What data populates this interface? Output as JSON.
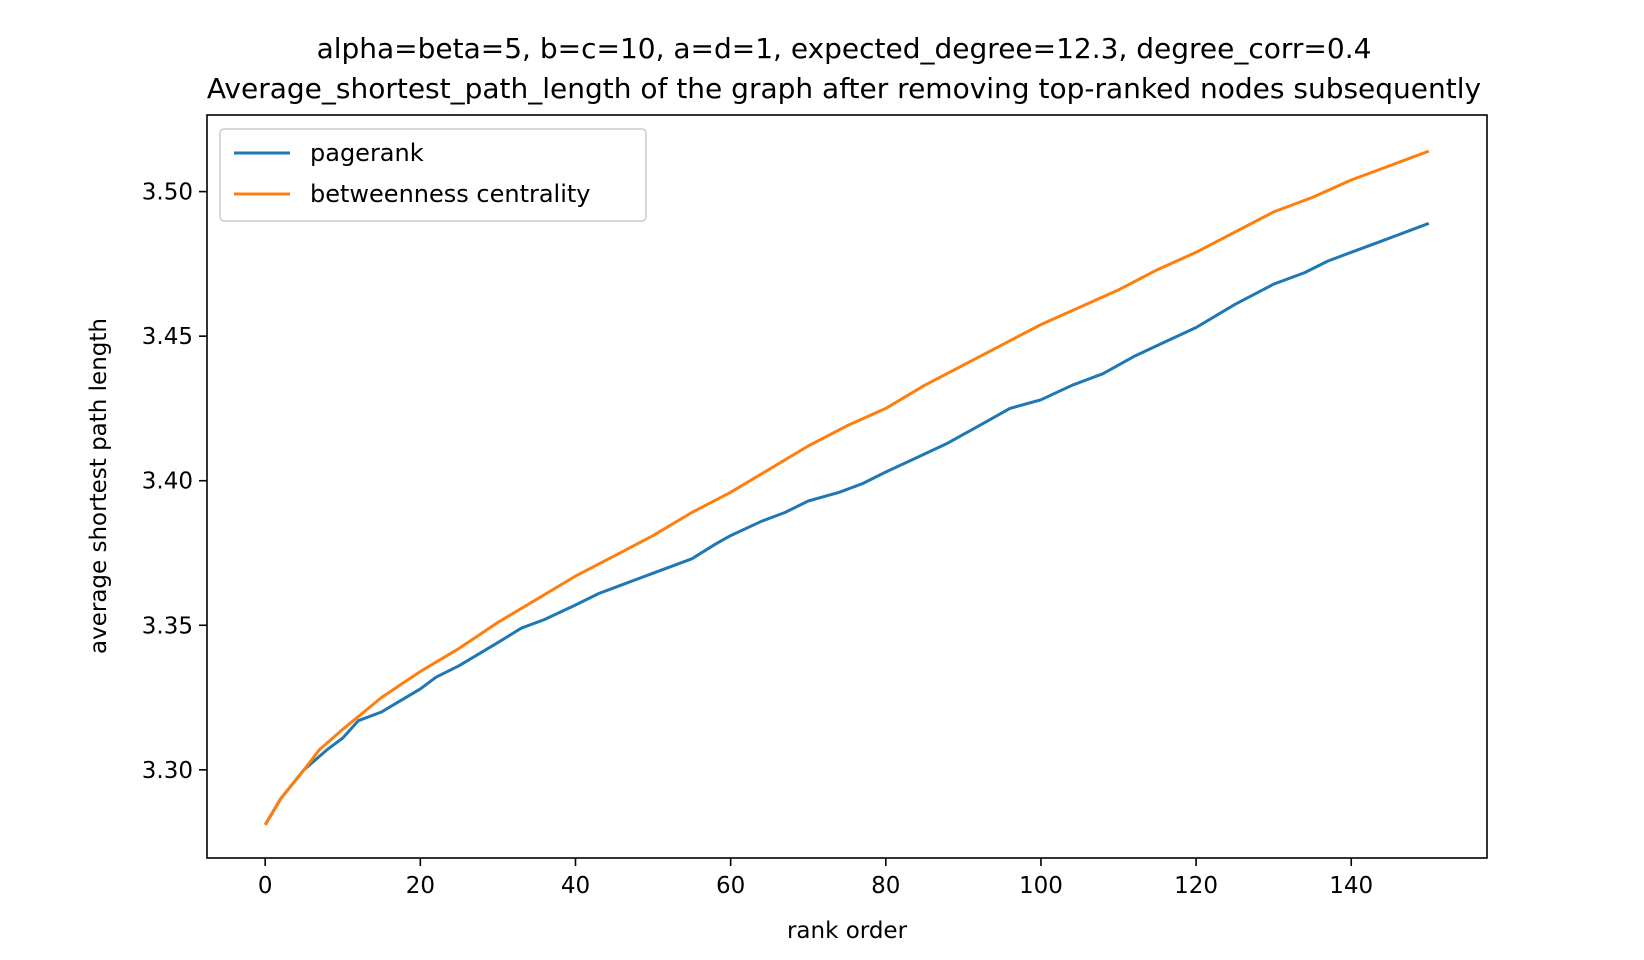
{
  "chart_data": {
    "type": "line",
    "title_line1": "alpha=beta=5, b=c=10, a=d=1, expected_degree=12.3, degree_corr=0.4",
    "title_line2": "Average_shortest_path_length of the graph after removing top-ranked nodes subsequently",
    "xlabel": "rank order",
    "ylabel": "average shortest path length",
    "xlim": [
      -7.5,
      157.5
    ],
    "ylim": [
      3.2695,
      3.5265
    ],
    "xticks": [
      0,
      20,
      40,
      60,
      80,
      100,
      120,
      140
    ],
    "yticks": [
      3.3,
      3.35,
      3.4,
      3.45,
      3.5
    ],
    "ytick_labels": [
      "3.30",
      "3.35",
      "3.40",
      "3.45",
      "3.50"
    ],
    "grid": false,
    "legend_position": "upper-left",
    "series": [
      {
        "name": "pagerank",
        "color": "#1f77b4",
        "points": [
          [
            0,
            3.281
          ],
          [
            2,
            3.29
          ],
          [
            5,
            3.3
          ],
          [
            8,
            3.307
          ],
          [
            10,
            3.311
          ],
          [
            12,
            3.317
          ],
          [
            15,
            3.32
          ],
          [
            20,
            3.328
          ],
          [
            22,
            3.332
          ],
          [
            25,
            3.336
          ],
          [
            30,
            3.344
          ],
          [
            33,
            3.349
          ],
          [
            36,
            3.352
          ],
          [
            40,
            3.357
          ],
          [
            43,
            3.361
          ],
          [
            46,
            3.364
          ],
          [
            50,
            3.368
          ],
          [
            55,
            3.373
          ],
          [
            58,
            3.378
          ],
          [
            60,
            3.381
          ],
          [
            64,
            3.386
          ],
          [
            67,
            3.389
          ],
          [
            70,
            3.393
          ],
          [
            74,
            3.396
          ],
          [
            77,
            3.399
          ],
          [
            80,
            3.403
          ],
          [
            84,
            3.408
          ],
          [
            88,
            3.413
          ],
          [
            92,
            3.419
          ],
          [
            96,
            3.425
          ],
          [
            100,
            3.428
          ],
          [
            104,
            3.433
          ],
          [
            108,
            3.437
          ],
          [
            112,
            3.443
          ],
          [
            116,
            3.448
          ],
          [
            120,
            3.453
          ],
          [
            125,
            3.461
          ],
          [
            130,
            3.468
          ],
          [
            134,
            3.472
          ],
          [
            137,
            3.476
          ],
          [
            140,
            3.479
          ],
          [
            144,
            3.483
          ],
          [
            148,
            3.487
          ],
          [
            150,
            3.489
          ]
        ]
      },
      {
        "name": "betweenness centrality",
        "color": "#ff7f0e",
        "points": [
          [
            0,
            3.281
          ],
          [
            2,
            3.29
          ],
          [
            5,
            3.3
          ],
          [
            7,
            3.307
          ],
          [
            10,
            3.314
          ],
          [
            15,
            3.325
          ],
          [
            20,
            3.334
          ],
          [
            25,
            3.342
          ],
          [
            30,
            3.351
          ],
          [
            35,
            3.359
          ],
          [
            40,
            3.367
          ],
          [
            45,
            3.374
          ],
          [
            50,
            3.381
          ],
          [
            55,
            3.389
          ],
          [
            60,
            3.396
          ],
          [
            65,
            3.404
          ],
          [
            70,
            3.412
          ],
          [
            75,
            3.419
          ],
          [
            80,
            3.425
          ],
          [
            85,
            3.433
          ],
          [
            90,
            3.44
          ],
          [
            95,
            3.447
          ],
          [
            100,
            3.454
          ],
          [
            105,
            3.46
          ],
          [
            110,
            3.466
          ],
          [
            115,
            3.473
          ],
          [
            120,
            3.479
          ],
          [
            125,
            3.486
          ],
          [
            130,
            3.493
          ],
          [
            135,
            3.498
          ],
          [
            140,
            3.504
          ],
          [
            145,
            3.509
          ],
          [
            150,
            3.514
          ]
        ]
      }
    ]
  }
}
